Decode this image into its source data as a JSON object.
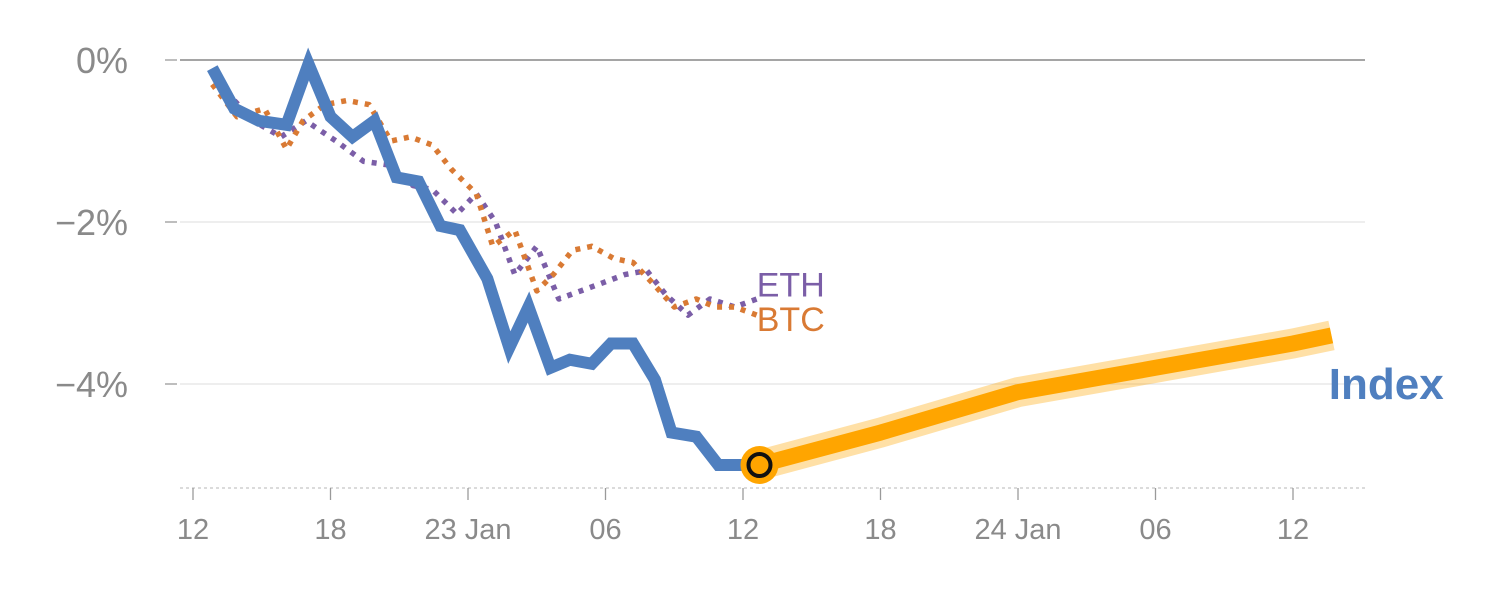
{
  "chart_data": {
    "type": "line",
    "title": "",
    "xlabel": "",
    "ylabel": "",
    "ylim": [
      -5.3,
      0
    ],
    "xlim": [
      0,
      42.5
    ],
    "grid": true,
    "y_ticks": [
      {
        "value": 0,
        "label": "0%"
      },
      {
        "value": -2,
        "label": "−2%"
      },
      {
        "value": -4,
        "label": "−4%"
      }
    ],
    "x_ticks": [
      {
        "value": 0,
        "label": "12"
      },
      {
        "value": 5,
        "label": "18"
      },
      {
        "value": 10,
        "label": "23 Jan"
      },
      {
        "value": 15,
        "label": "06"
      },
      {
        "value": 20,
        "label": "12"
      },
      {
        "value": 25,
        "label": "18"
      },
      {
        "value": 30,
        "label": "24 Jan"
      },
      {
        "value": 35,
        "label": "06"
      },
      {
        "value": 40,
        "label": "12"
      }
    ],
    "series": [
      {
        "name": "ETH",
        "style": "dotted",
        "color": "#7b5ea7",
        "x": [
          0.7,
          1.5,
          2.2,
          3.2,
          4.1,
          5.2,
          6.2,
          7.2,
          8.0,
          8.7,
          9.6,
          10.3,
          11.0,
          11.7,
          12.5,
          13.3,
          14.1,
          14.9,
          15.7,
          16.5,
          17.2,
          18.0,
          18.8,
          19.7,
          20.5
        ],
        "y": [
          -0.15,
          -0.5,
          -0.75,
          -0.95,
          -0.75,
          -1.0,
          -1.25,
          -1.3,
          -1.55,
          -1.6,
          -1.9,
          -1.65,
          -2.0,
          -2.65,
          -2.3,
          -2.95,
          -2.85,
          -2.75,
          -2.65,
          -2.6,
          -2.9,
          -3.15,
          -2.95,
          -3.05,
          -2.95
        ]
      },
      {
        "name": "BTC",
        "style": "dotted",
        "color": "#d97a34",
        "x": [
          0.7,
          1.6,
          2.6,
          3.4,
          4.0,
          4.8,
          5.6,
          6.4,
          7.2,
          7.9,
          8.7,
          9.4,
          10.3,
          10.9,
          11.7,
          12.5,
          13.1,
          13.8,
          14.5,
          15.3,
          16.0,
          16.7,
          17.5,
          18.3,
          19.0,
          19.7,
          20.5
        ],
        "y": [
          -0.3,
          -0.7,
          -0.6,
          -1.1,
          -0.75,
          -0.55,
          -0.5,
          -0.55,
          -1.0,
          -0.95,
          -1.05,
          -1.35,
          -1.65,
          -2.3,
          -2.1,
          -2.85,
          -2.65,
          -2.35,
          -2.3,
          -2.45,
          -2.5,
          -2.75,
          -3.05,
          -2.95,
          -3.05,
          -3.05,
          -3.15
        ]
      },
      {
        "name": "Index",
        "style": "solid",
        "color": "#4f7fbf",
        "x": [
          0.7,
          1.5,
          2.4,
          3.4,
          4.2,
          5.0,
          5.8,
          6.6,
          7.4,
          8.2,
          9.0,
          9.7,
          10.7,
          11.5,
          12.2,
          13.0,
          13.7,
          14.5,
          15.2,
          16.0,
          16.8,
          17.4,
          18.3,
          19.1,
          19.9,
          20.6
        ],
        "y": [
          -0.1,
          -0.6,
          -0.75,
          -0.8,
          -0.05,
          -0.7,
          -0.95,
          -0.75,
          -1.45,
          -1.5,
          -2.05,
          -2.1,
          -2.7,
          -3.55,
          -3.05,
          -3.8,
          -3.7,
          -3.75,
          -3.5,
          -3.5,
          -3.95,
          -4.6,
          -4.65,
          -5.0,
          -5.0,
          -5.0
        ]
      }
    ],
    "forecast": {
      "name": "Index forecast",
      "color": "#ffa500",
      "x": [
        20.6,
        25.0,
        30.0,
        35.0,
        40.0,
        41.4
      ],
      "y": [
        -5.0,
        -4.6,
        -4.1,
        -3.8,
        -3.5,
        -3.4
      ]
    },
    "marker": {
      "x": 20.6,
      "y": -5.0
    },
    "labels": [
      {
        "text": "ETH",
        "series": "ETH",
        "x": 20.5,
        "y": -2.77,
        "color": "#7b5ea7"
      },
      {
        "text": "BTC",
        "series": "BTC",
        "x": 20.5,
        "y": -3.2,
        "color": "#d97a34"
      },
      {
        "text": "Index",
        "series": "Index",
        "x": 41.3,
        "y": -4.0,
        "color": "#4f7fbf"
      }
    ]
  }
}
